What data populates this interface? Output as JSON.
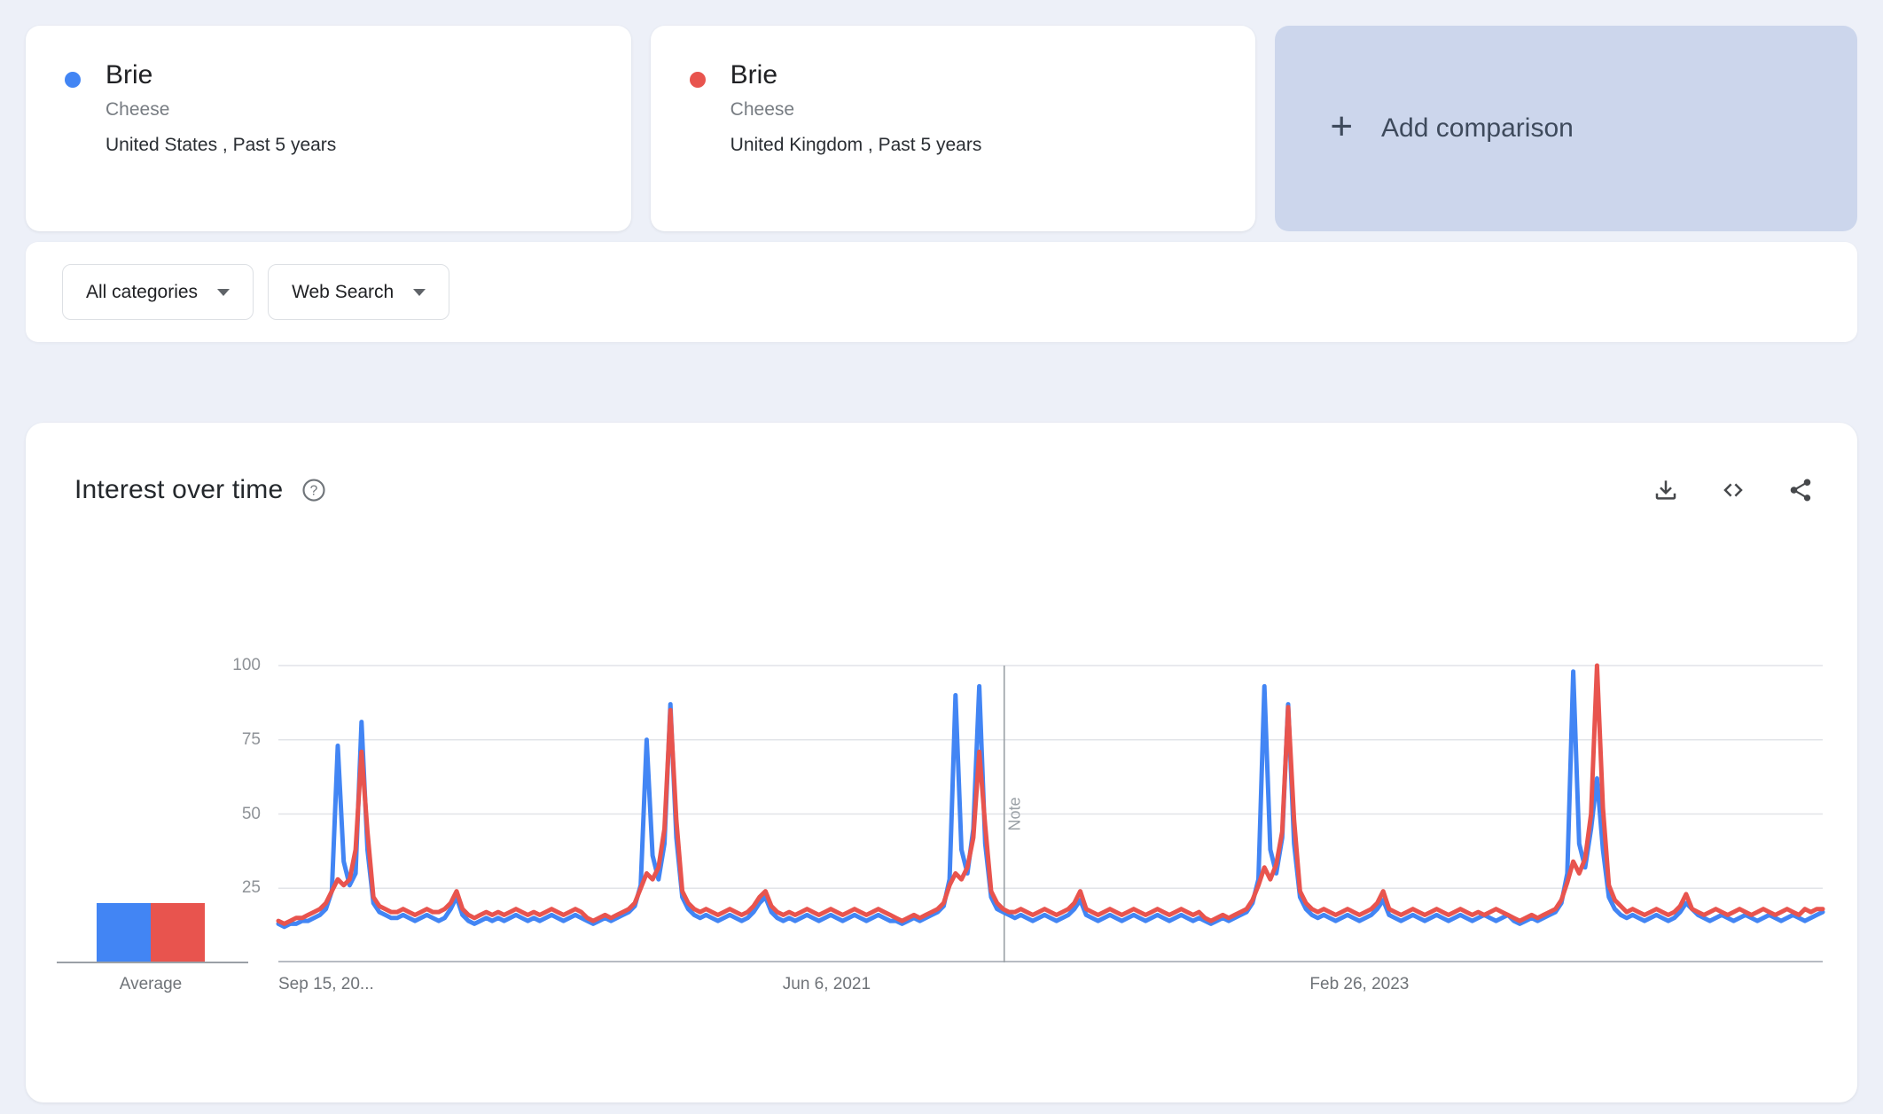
{
  "comparison": {
    "terms": [
      {
        "term": "Brie",
        "topic": "Cheese",
        "scope": "United States , Past 5 years",
        "color": "#4285f4"
      },
      {
        "term": "Brie",
        "topic": "Cheese",
        "scope": "United Kingdom , Past 5 years",
        "color": "#e8544e"
      }
    ],
    "add_label": "Add comparison"
  },
  "filters": {
    "category": "All categories",
    "search_type": "Web Search"
  },
  "chart_card": {
    "title": "Interest over time"
  },
  "chart_data": {
    "type": "line",
    "title": "Interest over time",
    "ylim": [
      0,
      100
    ],
    "y_ticks": [
      25,
      50,
      75,
      100
    ],
    "x_tick_labels": [
      "Sep 15, 20...",
      "Jun 6, 2021",
      "Feb 26, 2023"
    ],
    "x_tick_positions": [
      0,
      0.355,
      0.7
    ],
    "note_label": "Note",
    "note_position": 0.47,
    "grid": true,
    "legend_position": "none",
    "average": {
      "label": "Average",
      "values": [
        20,
        20
      ]
    },
    "series": [
      {
        "name": "Brie (Cheese) — United States",
        "color": "#4285f4",
        "values": [
          13,
          12,
          13,
          13,
          14,
          14,
          15,
          16,
          18,
          24,
          73,
          34,
          26,
          30,
          81,
          38,
          20,
          17,
          16,
          15,
          15,
          16,
          15,
          14,
          15,
          16,
          15,
          14,
          15,
          18,
          22,
          16,
          14,
          13,
          14,
          15,
          14,
          15,
          14,
          15,
          16,
          15,
          14,
          15,
          14,
          15,
          16,
          15,
          14,
          15,
          16,
          15,
          14,
          13,
          14,
          15,
          14,
          15,
          16,
          17,
          19,
          26,
          75,
          36,
          28,
          40,
          87,
          42,
          22,
          18,
          16,
          15,
          16,
          15,
          14,
          15,
          16,
          15,
          14,
          15,
          17,
          20,
          22,
          17,
          15,
          14,
          15,
          14,
          15,
          16,
          15,
          14,
          15,
          16,
          15,
          14,
          15,
          16,
          15,
          14,
          15,
          16,
          15,
          14,
          14,
          13,
          14,
          15,
          14,
          15,
          16,
          17,
          19,
          28,
          90,
          38,
          30,
          45,
          93,
          40,
          22,
          18,
          17,
          16,
          15,
          16,
          15,
          14,
          15,
          16,
          15,
          14,
          15,
          16,
          18,
          21,
          16,
          15,
          14,
          15,
          16,
          15,
          14,
          15,
          16,
          15,
          14,
          15,
          16,
          15,
          14,
          15,
          16,
          15,
          14,
          15,
          14,
          13,
          14,
          15,
          14,
          15,
          16,
          17,
          20,
          28,
          93,
          38,
          30,
          42,
          87,
          40,
          22,
          18,
          16,
          15,
          16,
          15,
          14,
          15,
          16,
          15,
          14,
          15,
          16,
          18,
          21,
          16,
          15,
          14,
          15,
          16,
          15,
          14,
          15,
          16,
          15,
          14,
          15,
          16,
          15,
          14,
          15,
          16,
          15,
          14,
          15,
          16,
          14,
          13,
          14,
          15,
          14,
          15,
          16,
          17,
          20,
          30,
          98,
          40,
          32,
          45,
          62,
          38,
          22,
          18,
          16,
          15,
          16,
          15,
          14,
          15,
          16,
          15,
          14,
          15,
          17,
          20,
          18,
          16,
          15,
          14,
          15,
          16,
          15,
          14,
          15,
          16,
          15,
          14,
          15,
          16,
          15,
          14,
          15,
          16,
          15,
          14,
          15,
          16,
          17
        ]
      },
      {
        "name": "Brie (Cheese) — United Kingdom",
        "color": "#e8544e",
        "values": [
          14,
          13,
          14,
          15,
          15,
          16,
          17,
          18,
          20,
          24,
          28,
          26,
          28,
          38,
          71,
          44,
          22,
          19,
          18,
          17,
          17,
          18,
          17,
          16,
          17,
          18,
          17,
          17,
          18,
          20,
          24,
          18,
          16,
          15,
          16,
          17,
          16,
          17,
          16,
          17,
          18,
          17,
          16,
          17,
          16,
          17,
          18,
          17,
          16,
          17,
          18,
          17,
          15,
          14,
          15,
          16,
          15,
          16,
          17,
          18,
          20,
          25,
          30,
          28,
          32,
          45,
          85,
          48,
          24,
          20,
          18,
          17,
          18,
          17,
          16,
          17,
          18,
          17,
          16,
          17,
          19,
          22,
          24,
          19,
          17,
          16,
          17,
          16,
          17,
          18,
          17,
          16,
          17,
          18,
          17,
          16,
          17,
          18,
          17,
          16,
          17,
          18,
          17,
          16,
          15,
          14,
          15,
          16,
          15,
          16,
          17,
          18,
          20,
          26,
          30,
          28,
          32,
          42,
          71,
          46,
          24,
          20,
          18,
          17,
          17,
          18,
          17,
          16,
          17,
          18,
          17,
          16,
          17,
          18,
          20,
          24,
          18,
          17,
          16,
          17,
          18,
          17,
          16,
          17,
          18,
          17,
          16,
          17,
          18,
          17,
          16,
          17,
          18,
          17,
          16,
          17,
          15,
          14,
          15,
          16,
          15,
          16,
          17,
          18,
          21,
          26,
          32,
          28,
          33,
          44,
          86,
          48,
          24,
          20,
          18,
          17,
          18,
          17,
          16,
          17,
          18,
          17,
          16,
          17,
          18,
          20,
          24,
          18,
          17,
          16,
          17,
          18,
          17,
          16,
          17,
          18,
          17,
          16,
          17,
          18,
          17,
          16,
          17,
          16,
          17,
          18,
          17,
          16,
          15,
          14,
          15,
          16,
          15,
          16,
          17,
          18,
          21,
          27,
          34,
          30,
          35,
          50,
          100,
          52,
          26,
          21,
          19,
          17,
          18,
          17,
          16,
          17,
          18,
          17,
          16,
          17,
          19,
          23,
          18,
          17,
          16,
          17,
          18,
          17,
          16,
          17,
          18,
          17,
          16,
          17,
          18,
          17,
          16,
          17,
          18,
          17,
          16,
          18,
          17,
          18,
          18
        ]
      }
    ]
  }
}
